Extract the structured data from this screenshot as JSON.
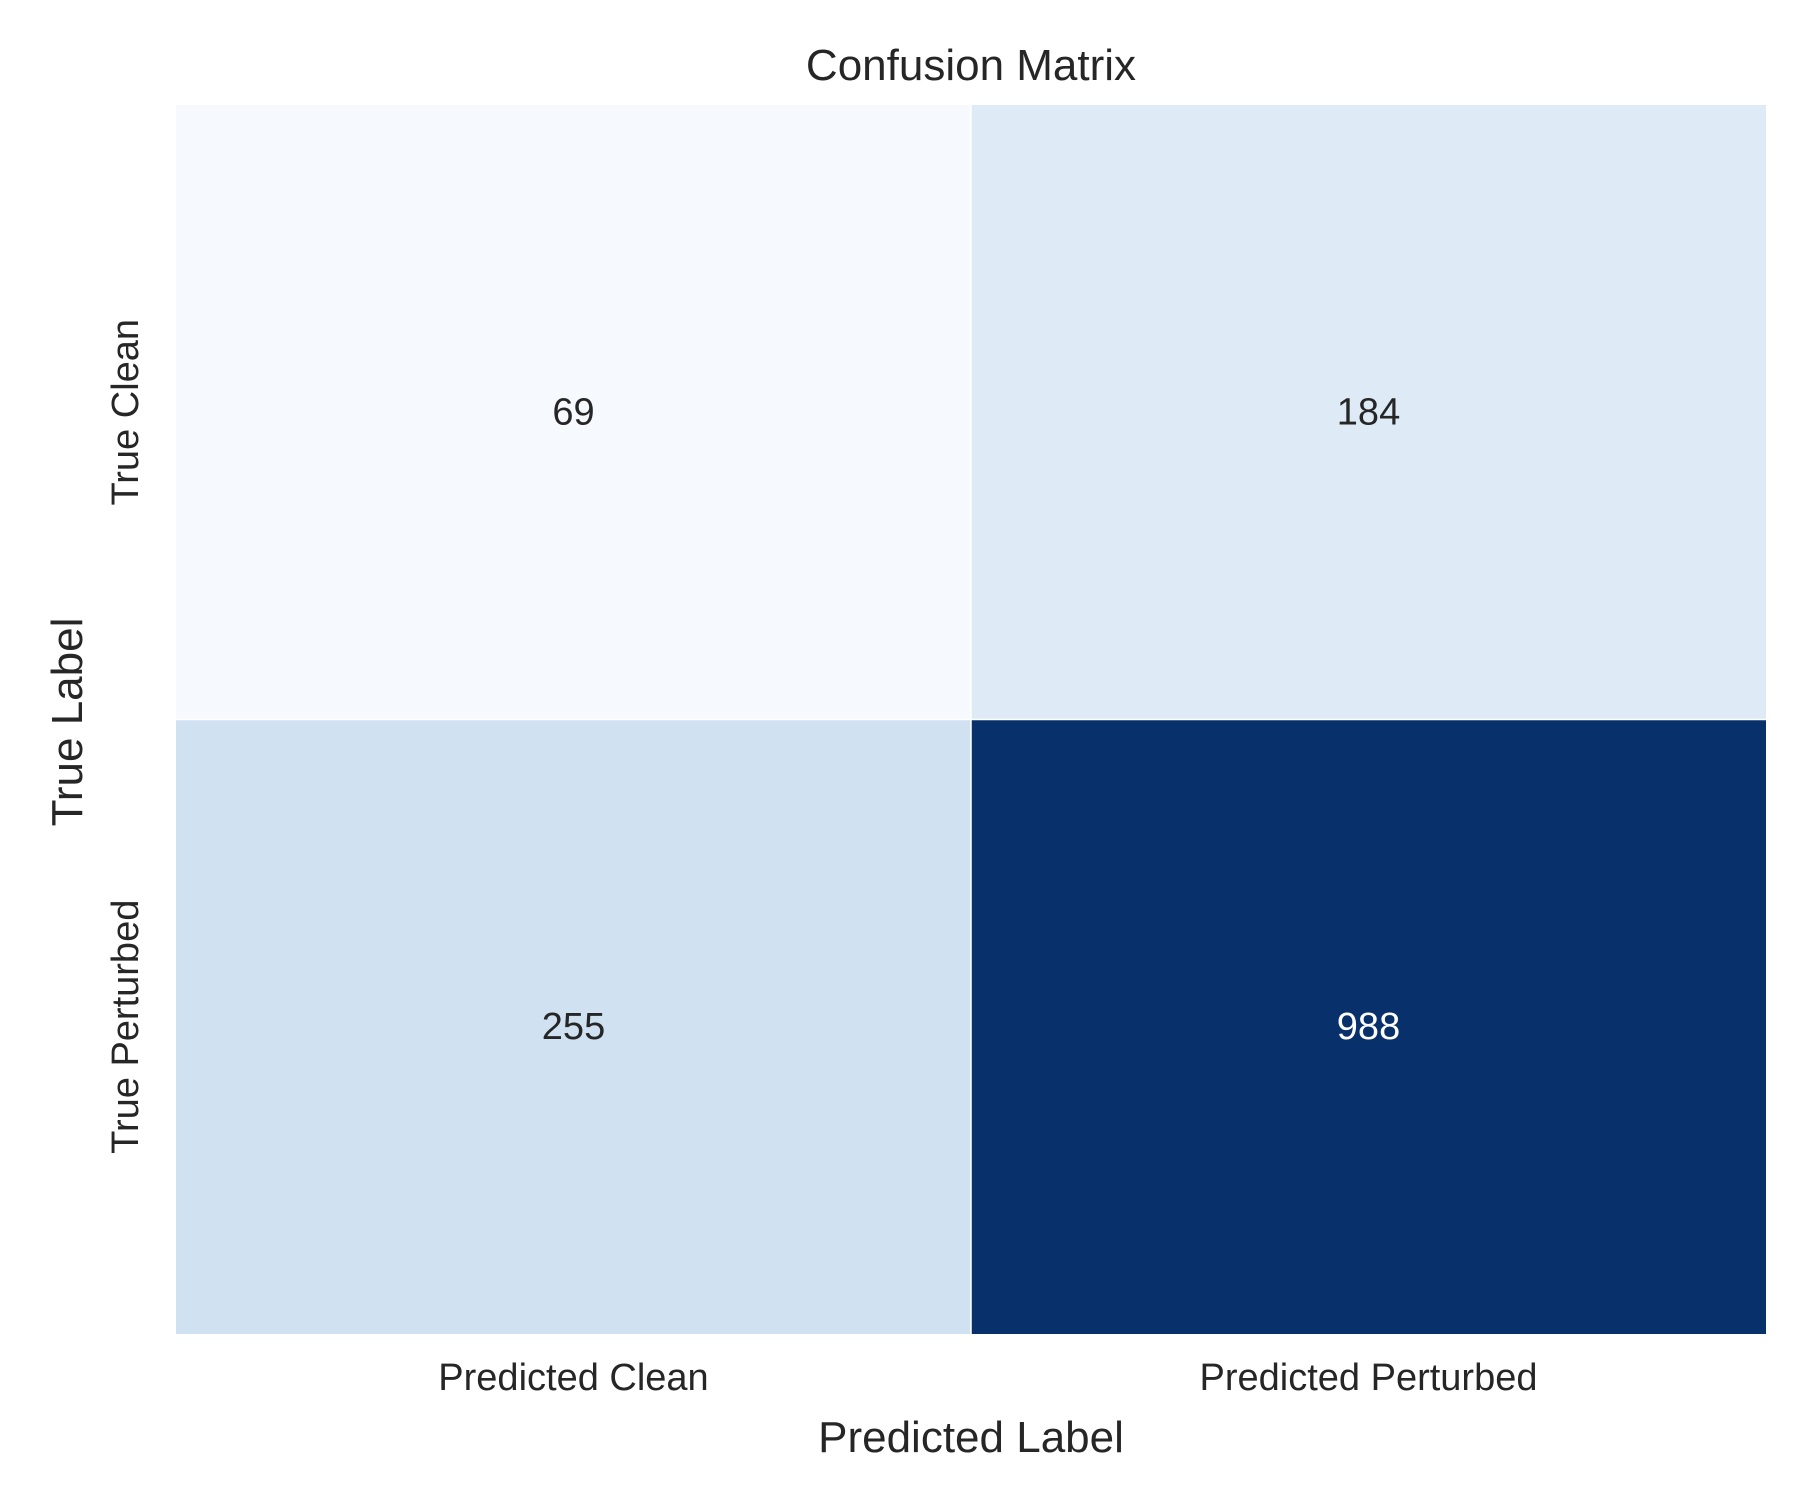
{
  "chart_data": {
    "type": "heatmap",
    "title": "Confusion Matrix",
    "xlabel": "Predicted Label",
    "ylabel": "True Label",
    "x_categories": [
      "Predicted Clean",
      "Predicted Perturbed"
    ],
    "y_categories": [
      "True Clean",
      "True Perturbed"
    ],
    "values": [
      [
        69,
        184
      ],
      [
        255,
        988
      ]
    ],
    "colormap": "Blues",
    "colorbar": false,
    "grid": false,
    "colors": {
      "cells": [
        [
          "#f6f9fe",
          "#deebf7"
        ],
        [
          "#d0e1f2",
          "#08306b"
        ]
      ],
      "dark_text": "#262626",
      "light_text": "#ffffff"
    }
  }
}
